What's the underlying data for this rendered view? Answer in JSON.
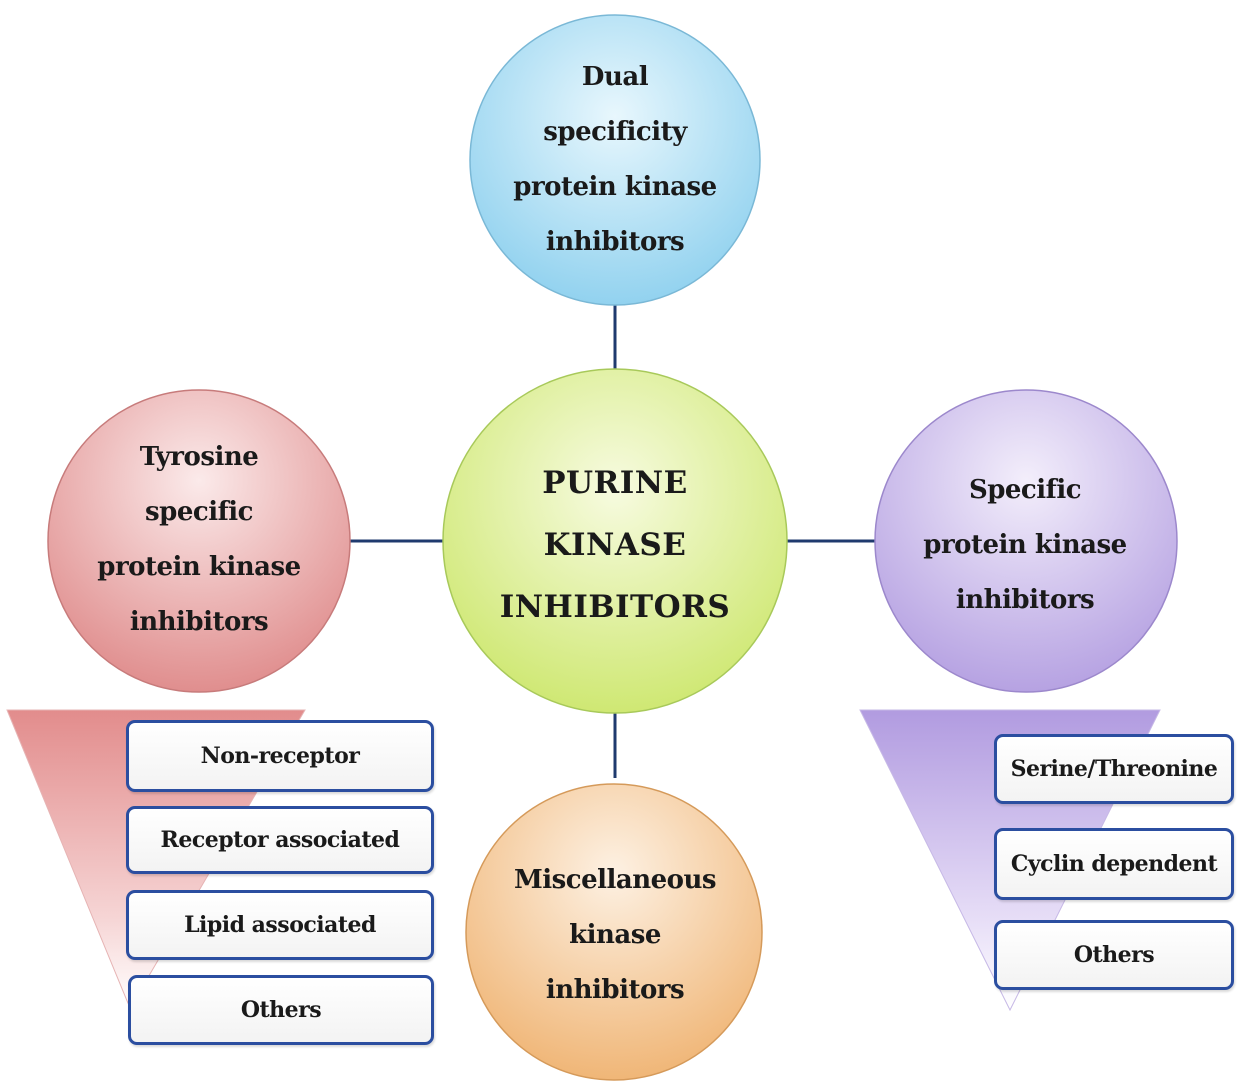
{
  "diagram": {
    "center": {
      "label": "PURINE\nKINASE\nINHIBITORS",
      "color": "#d6ec7a"
    },
    "top": {
      "label": "Dual\nspecificity\nprotein kinase\ninhibitors",
      "color": "#a9dcf2"
    },
    "left": {
      "label": "Tyrosine\nspecific\nprotein kinase\ninhibitors",
      "color": "#e49c9c",
      "subtypes": [
        "Non-receptor",
        "Receptor associated",
        "Lipid associated",
        "Others"
      ]
    },
    "right": {
      "label": "Specific\nprotein kinase\ninhibitors",
      "color": "#c2b2e6",
      "subtypes": [
        "Serine/Threonine",
        "Cyclin dependent",
        "Others"
      ]
    },
    "bottom": {
      "label": "Miscellaneous\nkinase\ninhibitors",
      "color": "#f4c28e"
    }
  }
}
